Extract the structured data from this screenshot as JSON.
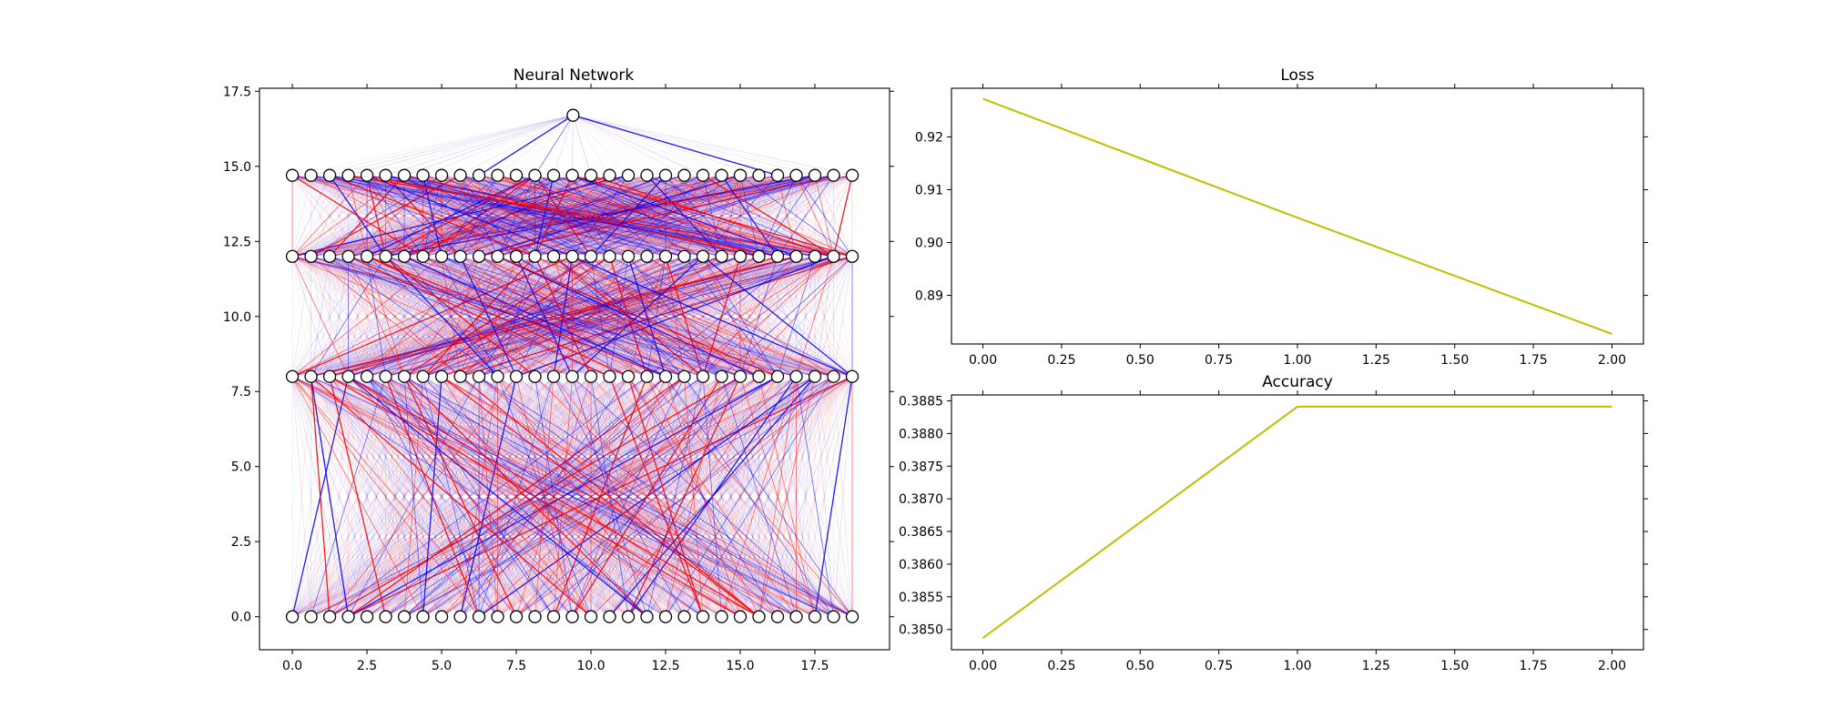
{
  "chart_data": [
    {
      "type": "network",
      "title": "Neural Network",
      "xlim": [
        -1.1,
        20.0
      ],
      "ylim": [
        -1.1,
        17.6
      ],
      "xticks": [
        0,
        2.5,
        5,
        7.5,
        10,
        12.5,
        15,
        17.5
      ],
      "xtick_labels": [
        "0.0",
        "2.5",
        "5.0",
        "7.5",
        "10.0",
        "12.5",
        "15.0",
        "17.5"
      ],
      "yticks": [
        0,
        2.5,
        5,
        7.5,
        10,
        12.5,
        15,
        17.5
      ],
      "ytick_labels": [
        "0.0",
        "2.5",
        "5.0",
        "7.5",
        "10.0",
        "12.5",
        "15.0",
        "17.5"
      ],
      "layers": [
        {
          "y": 0,
          "count": 31,
          "x_start": 0,
          "x_step": 0.625
        },
        {
          "y": 8,
          "count": 31,
          "x_start": 0,
          "x_step": 0.625
        },
        {
          "y": 12,
          "count": 31,
          "x_start": 0,
          "x_step": 0.625
        },
        {
          "y": 14.7,
          "count": 31,
          "x_start": 0,
          "x_step": 0.625
        },
        {
          "y": 16.7,
          "count": 1,
          "x_start": 9.4,
          "x_step": 0
        }
      ],
      "edge_colors": {
        "positive": "#0000ff",
        "negative": "#ff0000"
      }
    },
    {
      "type": "line",
      "title": "Loss",
      "x": [
        0,
        1,
        2
      ],
      "series": [
        {
          "values": [
            0.9272,
            0.9047,
            0.8827
          ],
          "color": "#bfbf00"
        }
      ],
      "xlim": [
        -0.1,
        2.1
      ],
      "ylim": [
        0.8808,
        0.9292
      ],
      "xticks": [
        0,
        0.25,
        0.5,
        0.75,
        1,
        1.25,
        1.5,
        1.75,
        2
      ],
      "xtick_labels": [
        "0.00",
        "0.25",
        "0.50",
        "0.75",
        "1.00",
        "1.25",
        "1.50",
        "1.75",
        "2.00"
      ],
      "yticks": [
        0.89,
        0.9,
        0.91,
        0.92
      ],
      "ytick_labels": [
        "0.89",
        "0.90",
        "0.91",
        "0.92"
      ]
    },
    {
      "type": "line",
      "title": "Accuracy",
      "x": [
        0,
        1,
        2
      ],
      "series": [
        {
          "values": [
            0.38487,
            0.38841,
            0.38841
          ],
          "color": "#bfbf00"
        }
      ],
      "xlim": [
        -0.1,
        2.1
      ],
      "ylim": [
        0.38469,
        0.38859
      ],
      "xticks": [
        0,
        0.25,
        0.5,
        0.75,
        1,
        1.25,
        1.5,
        1.75,
        2
      ],
      "xtick_labels": [
        "0.00",
        "0.25",
        "0.50",
        "0.75",
        "1.00",
        "1.25",
        "1.50",
        "1.75",
        "2.00"
      ],
      "yticks": [
        0.385,
        0.3855,
        0.386,
        0.3865,
        0.387,
        0.3875,
        0.388,
        0.3885
      ],
      "ytick_labels": [
        "0.3850",
        "0.3855",
        "0.3860",
        "0.3865",
        "0.3870",
        "0.3875",
        "0.3880",
        "0.3885"
      ]
    }
  ]
}
